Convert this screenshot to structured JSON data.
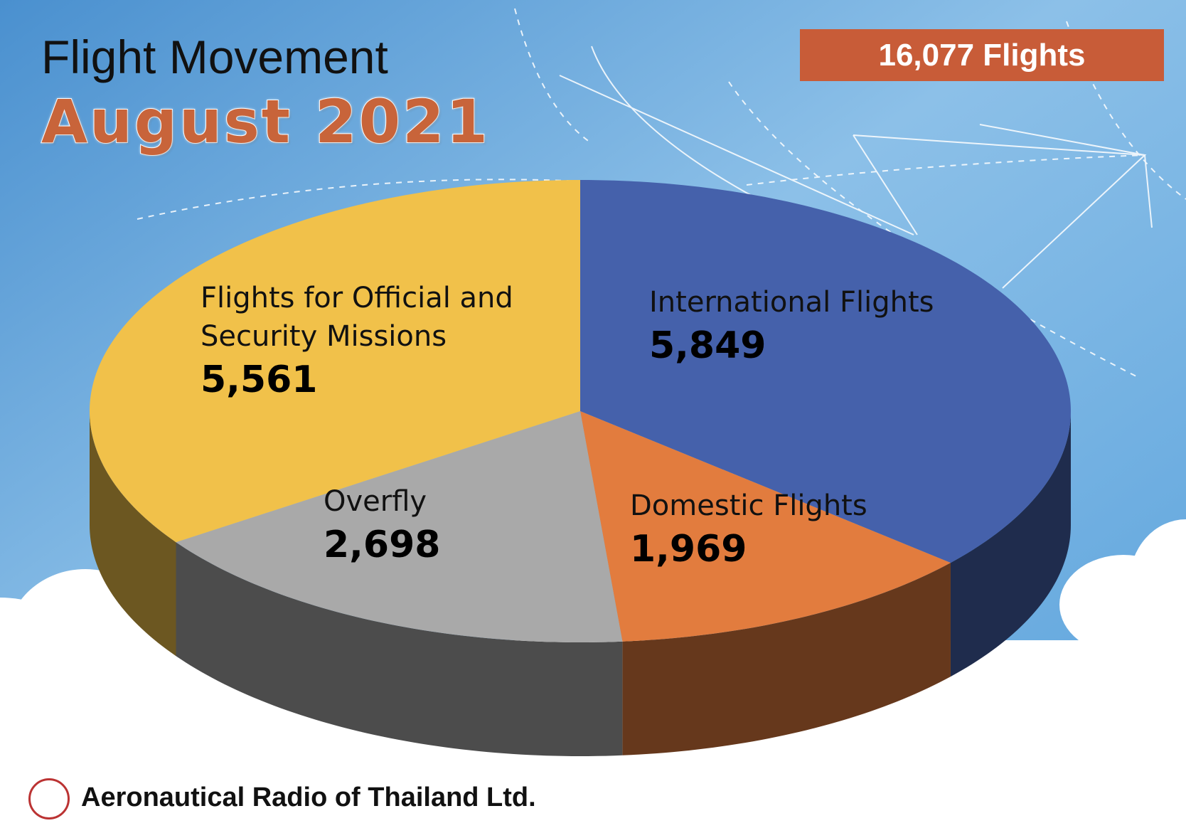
{
  "chart_data": {
    "type": "pie",
    "title": "Flight Movement",
    "subtitle": "August 2021",
    "total": "16,077 Flights",
    "categories": [
      "International Flights",
      "Domestic Flights",
      "Overfly",
      "Flights for Official and Security Missions"
    ],
    "values": [
      5849,
      1969,
      2698,
      5561
    ],
    "value_labels": [
      "5,849",
      "1,969",
      "2,698",
      "5,561"
    ],
    "colors": [
      "#4561ab",
      "#e27c3e",
      "#a9a9a9",
      "#f1c14a"
    ],
    "footer": "Aeronautical Radio of Thailand Ltd."
  }
}
